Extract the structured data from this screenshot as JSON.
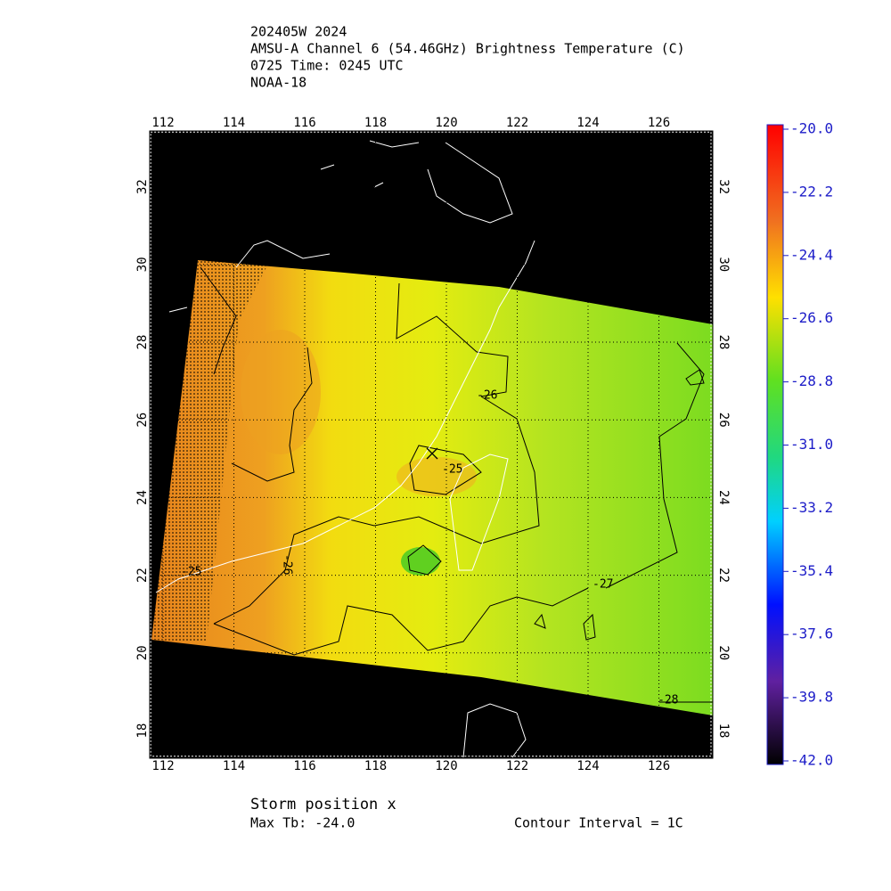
{
  "header": {
    "lines": [
      "202405W 2024",
      "AMSU-A Channel 6 (54.46GHz) Brightness Temperature (C)",
      "0725 Time: 0245 UTC",
      "NOAA-18"
    ]
  },
  "map": {
    "lon_ticks": [
      112,
      114,
      116,
      118,
      120,
      122,
      124,
      126
    ],
    "lat_ticks": [
      18,
      20,
      22,
      24,
      26,
      28,
      30,
      32
    ],
    "contour_labels": [
      "-26",
      "-25",
      "-25",
      "-26",
      "-27",
      "-28"
    ]
  },
  "colorbar": {
    "labels": [
      "-20.0",
      "-22.2",
      "-24.4",
      "-26.6",
      "-28.8",
      "-31.0",
      "-33.2",
      "-35.4",
      "-37.6",
      "-39.8",
      "-42.0"
    ]
  },
  "footer": {
    "storm_position": "Storm position x",
    "max_tb": "Max Tb: -24.0",
    "contour_interval": "Contour Interval = 1C"
  }
}
